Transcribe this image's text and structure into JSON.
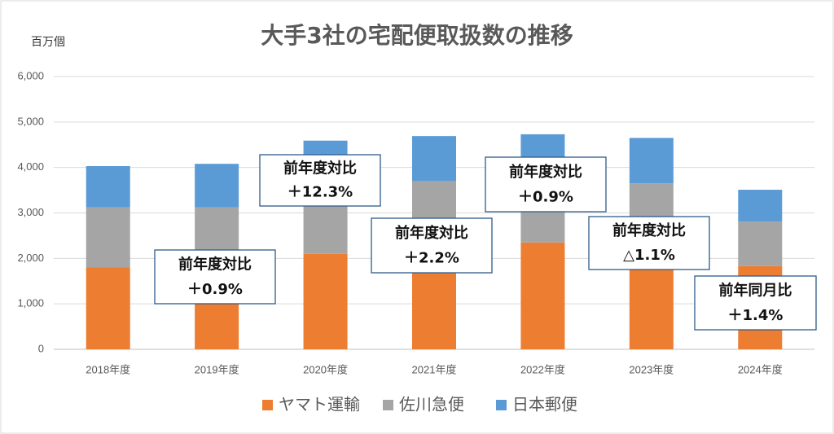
{
  "chart_data": {
    "type": "stacked_bar",
    "title": "大手3社の宅配便取扱数の推移",
    "y_label": "百万個",
    "categories": [
      "2018年度",
      "2019年度",
      "2020年度",
      "2021年度",
      "2022年度",
      "2023年度",
      "2024年度"
    ],
    "series": [
      {
        "name": "ヤマト運輸",
        "color": "#ed7d31",
        "values": [
          1800,
          1800,
          2100,
          2270,
          2350,
          2310,
          1830
        ]
      },
      {
        "name": "佐川急便",
        "color": "#a5a5a5",
        "values": [
          1320,
          1320,
          1400,
          1430,
          1460,
          1340,
          980
        ]
      },
      {
        "name": "日本郵便",
        "color": "#5b9bd5",
        "values": [
          910,
          960,
          1090,
          990,
          920,
          1000,
          700
        ]
      }
    ],
    "ylim": [
      0,
      6000
    ],
    "yticks": [
      0,
      {
        "value": 1000,
        "label": "1,000"
      },
      {
        "value": 2000,
        "label": "2,000"
      },
      {
        "value": 3000,
        "label": "3,000"
      },
      {
        "value": 4000,
        "label": "4,000"
      },
      {
        "value": 5000,
        "label": "5,000"
      },
      {
        "value": 6000,
        "label": "6,000"
      }
    ],
    "grid": true,
    "annotations": [
      {
        "line1": "前年度対比",
        "line2": "＋0.9%"
      },
      {
        "line1": "前年度対比",
        "line2": "＋12.3%"
      },
      {
        "line1": "前年度対比",
        "line2": "＋2.2%"
      },
      {
        "line1": "前年度対比",
        "line2": "＋0.9%"
      },
      {
        "line1": "前年度対比",
        "line2": "△1.1%"
      },
      {
        "line1": "前年同月比",
        "line2": "＋1.4%"
      }
    ]
  }
}
